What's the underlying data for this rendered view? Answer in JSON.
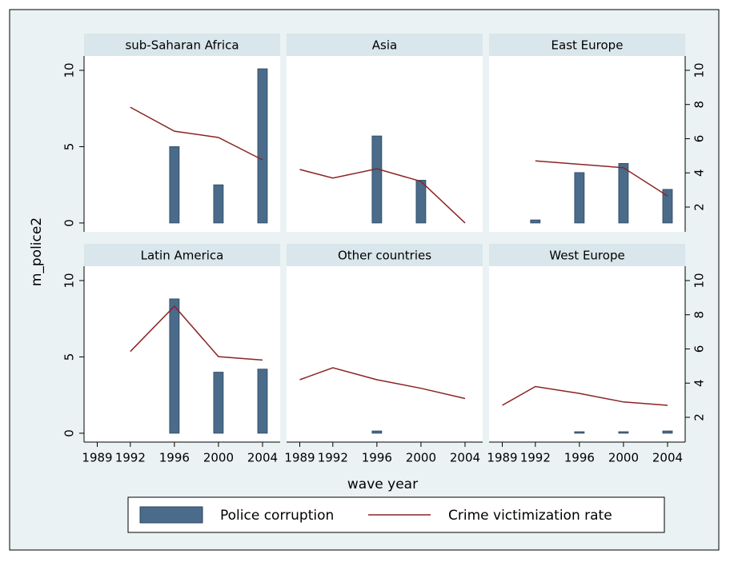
{
  "chart_data": {
    "type": "bar-line-facet",
    "ylabel": "m_police2",
    "xlabel": "wave year",
    "x": [
      1989,
      1992,
      1996,
      2000,
      2004
    ],
    "xticks": [
      1989,
      1992,
      1996,
      2000,
      2004
    ],
    "xlim": [
      1987.8,
      2005.6
    ],
    "ylim": [
      -0.58,
      10.94
    ],
    "yticks": [
      0,
      5,
      10
    ],
    "y2lim": [
      0.55,
      10.84
    ],
    "y2ticks": [
      2,
      4,
      6,
      8,
      10
    ],
    "series": [
      {
        "name": "Police corruption",
        "color": "#4a6b8a",
        "kind": "bar"
      },
      {
        "name": "Crime victimization rate",
        "color": "#8b2323",
        "kind": "line",
        "axis": "y2"
      }
    ],
    "panels": [
      {
        "title": "sub-Saharan Africa",
        "values": [
          [
            null,
            null,
            5.0,
            2.5,
            10.1
          ],
          [
            null,
            7.84,
            6.44,
            6.07,
            4.76
          ]
        ]
      },
      {
        "title": "Asia",
        "values": [
          [
            null,
            null,
            5.7,
            2.8,
            null
          ],
          [
            4.2,
            3.7,
            4.24,
            3.5,
            1.07
          ]
        ]
      },
      {
        "title": "East Europe",
        "values": [
          [
            null,
            0.2,
            3.3,
            3.9,
            2.2
          ],
          [
            null,
            4.7,
            4.5,
            4.3,
            2.65
          ]
        ]
      },
      {
        "title": "Latin America",
        "values": [
          [
            null,
            null,
            8.8,
            4.0,
            4.2
          ],
          [
            null,
            5.85,
            8.5,
            5.55,
            5.35
          ]
        ]
      },
      {
        "title": "Other countries",
        "values": [
          [
            null,
            null,
            0.15,
            null,
            null
          ],
          [
            4.2,
            4.9,
            4.2,
            3.7,
            3.1
          ]
        ]
      },
      {
        "title": "West Europe",
        "values": [
          [
            null,
            null,
            0.1,
            0.1,
            0.15
          ],
          [
            2.7,
            3.8,
            3.4,
            2.9,
            2.7
          ]
        ]
      }
    ]
  }
}
